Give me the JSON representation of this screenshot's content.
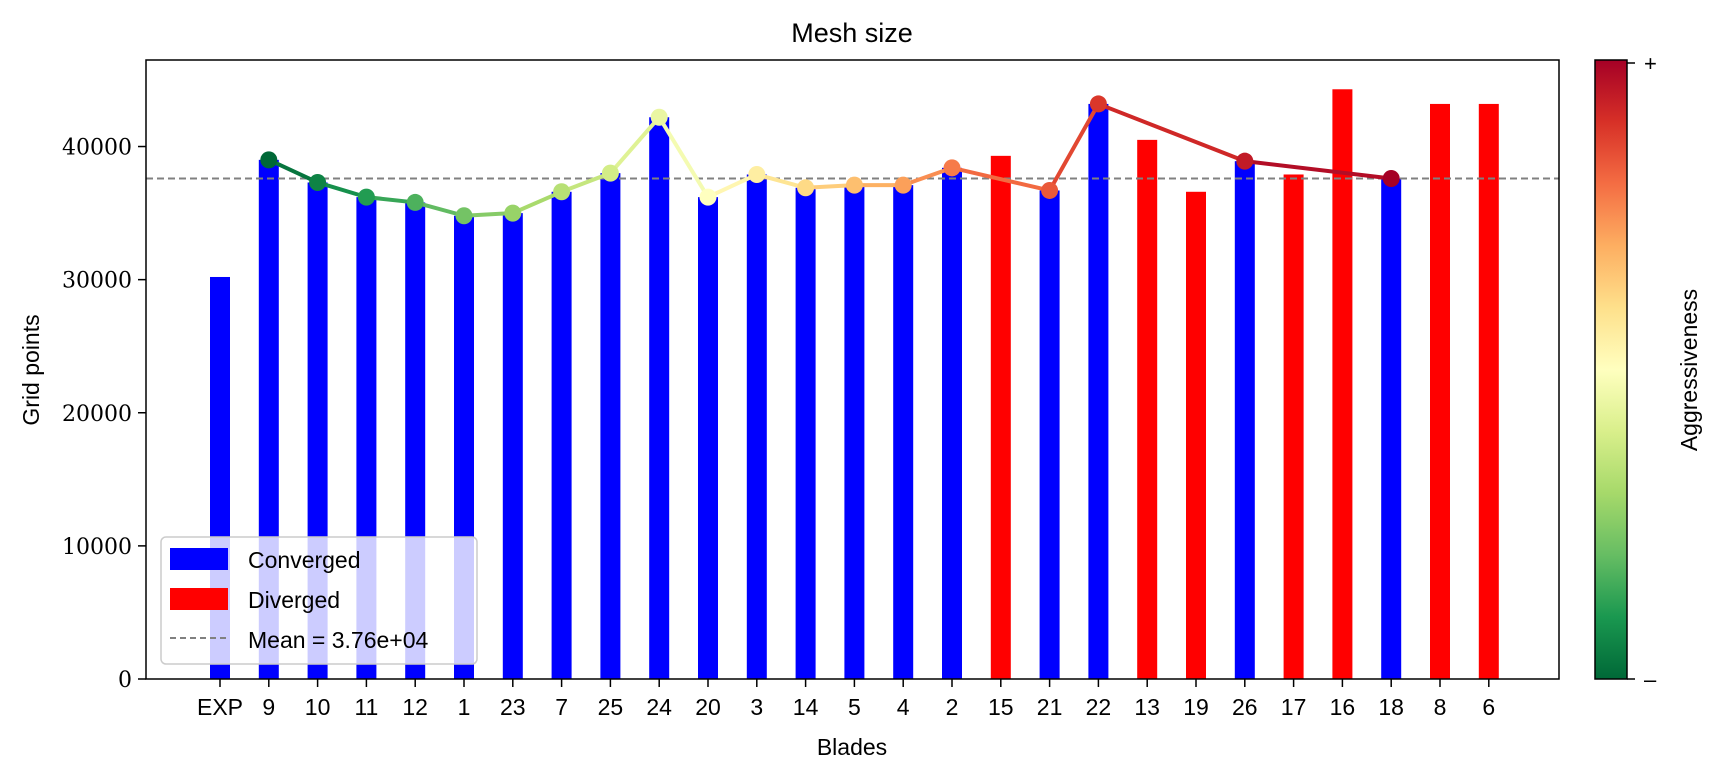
{
  "chart_data": {
    "type": "bar",
    "title": "Mesh size",
    "xlabel": "Blades",
    "ylabel": "Grid points",
    "ylim": [
      0,
      46500
    ],
    "yticks": [
      0,
      10000,
      20000,
      30000,
      40000
    ],
    "ytick_labels": [
      "0",
      "10000",
      "20000",
      "30000",
      "40000"
    ],
    "categories": [
      "EXP",
      "9",
      "10",
      "11",
      "12",
      "1",
      "23",
      "7",
      "25",
      "24",
      "20",
      "3",
      "14",
      "5",
      "4",
      "2",
      "15",
      "21",
      "22",
      "13",
      "19",
      "26",
      "17",
      "16",
      "18",
      "8",
      "6"
    ],
    "values": [
      30200,
      39000,
      37300,
      36200,
      35800,
      34800,
      35000,
      36600,
      38000,
      42200,
      36200,
      37900,
      36900,
      37100,
      37100,
      38400,
      39300,
      36700,
      43200,
      40500,
      36600,
      38900,
      37900,
      44300,
      37600,
      43200,
      43200
    ],
    "status": [
      "converged",
      "converged",
      "converged",
      "converged",
      "converged",
      "converged",
      "converged",
      "converged",
      "converged",
      "converged",
      "converged",
      "converged",
      "converged",
      "converged",
      "converged",
      "converged",
      "diverged",
      "converged",
      "converged",
      "diverged",
      "diverged",
      "converged",
      "diverged",
      "diverged",
      "converged",
      "diverged",
      "diverged"
    ],
    "line": {
      "categories": [
        "9",
        "10",
        "11",
        "12",
        "1",
        "23",
        "7",
        "25",
        "24",
        "20",
        "3",
        "14",
        "5",
        "4",
        "2",
        "21",
        "22",
        "26",
        "18"
      ],
      "values": [
        39000,
        37300,
        36200,
        35800,
        34800,
        35000,
        36600,
        38000,
        42200,
        36200,
        37900,
        36900,
        37100,
        37100,
        38400,
        36700,
        43200,
        38900,
        37600
      ]
    },
    "mean": 37600,
    "grid": false,
    "legend": {
      "location": "lower-left",
      "entries": [
        {
          "label": "Converged",
          "color": "#0000ff",
          "kind": "bar"
        },
        {
          "label": "Diverged",
          "color": "#ff0000",
          "kind": "bar"
        },
        {
          "label": "Mean = 3.76e+04",
          "color": "#808080",
          "kind": "dashed-line"
        }
      ]
    },
    "colorbar": {
      "label": "Aggressiveness",
      "top_label": "+",
      "bottom_label": "–",
      "colormap": "RdYlGn_r",
      "stops": [
        "#006837",
        "#1a9850",
        "#66bd63",
        "#a6d96a",
        "#d9ef8b",
        "#ffffbf",
        "#fee08b",
        "#fdae61",
        "#f46d43",
        "#d73027",
        "#a50026"
      ]
    },
    "colors": {
      "converged": "#0000ff",
      "diverged": "#ff0000",
      "mean_line": "#808080"
    }
  }
}
